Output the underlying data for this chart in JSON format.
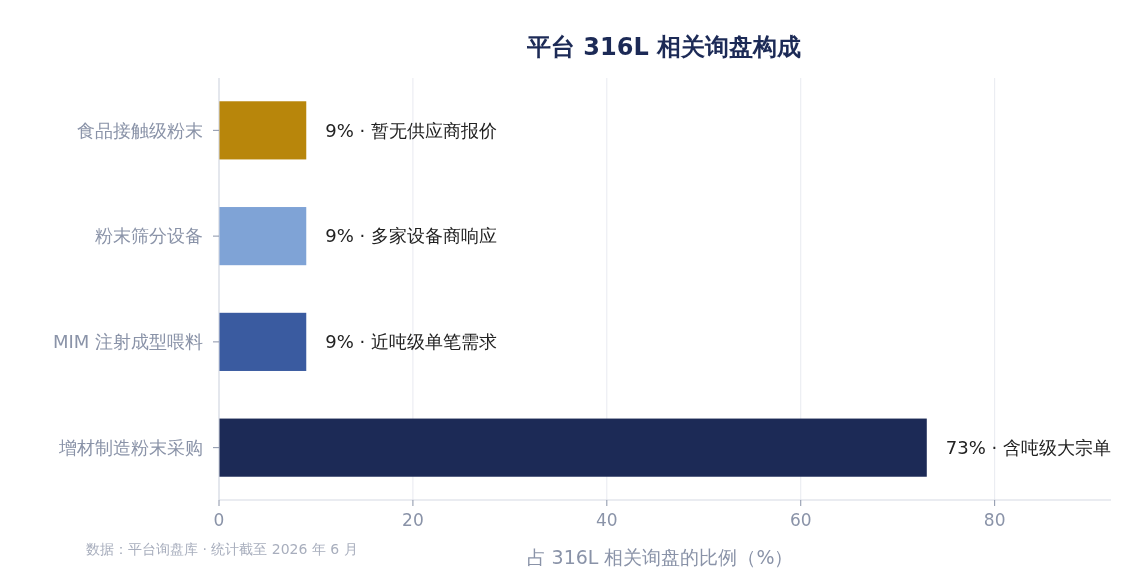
{
  "chart_data": {
    "type": "bar",
    "orientation": "horizontal",
    "title": "平台 316L 相关询盘构成",
    "categories": [
      "食品接触级粉末",
      "粉末筛分设备",
      "MIM 注射成型喂料",
      "增材制造粉末采购"
    ],
    "values": [
      9,
      9,
      9,
      73
    ],
    "colors": [
      "#b8860b",
      "#7fa3d6",
      "#3a5ba0",
      "#1c2a56"
    ],
    "value_labels": [
      "9% · 暂无供应商报价",
      "9% · 多家设备商响应",
      "9% · 近吨级单笔需求",
      "73% · 含吨级大宗单"
    ],
    "xlabel": "占 316L 相关询盘的比例（%）",
    "xlim": [
      0,
      92
    ],
    "xticks": [
      0,
      20,
      40,
      60,
      80
    ],
    "grid": "x",
    "annotations": [
      "数据：平台询盘库 · 统计截至 2026 年 6 月"
    ]
  }
}
